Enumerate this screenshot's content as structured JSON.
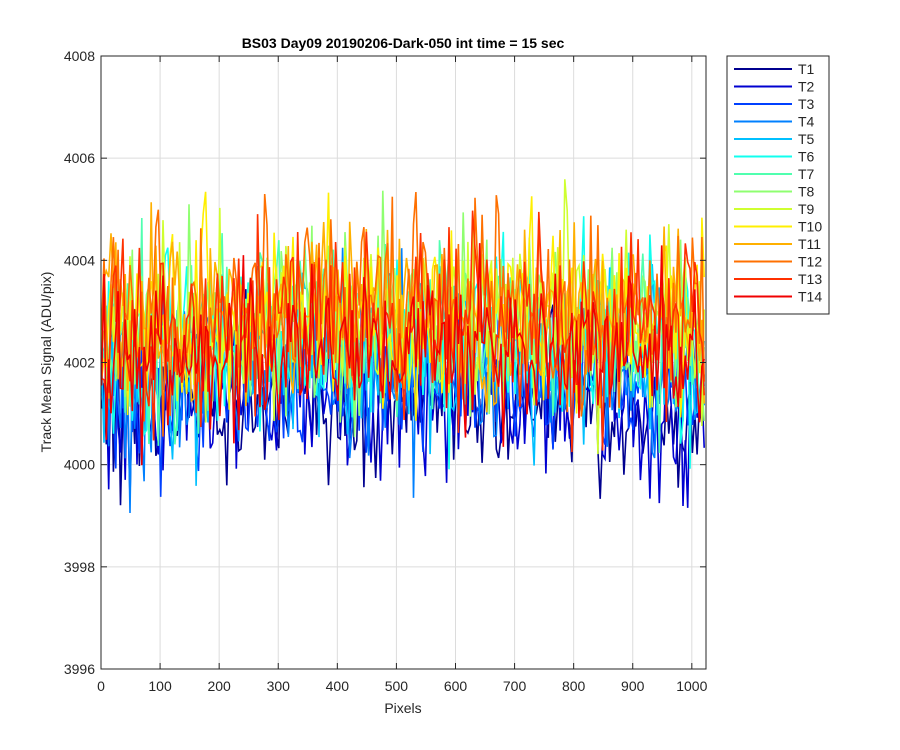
{
  "chart_data": {
    "type": "line",
    "title": "BS03 Day09 20190206-Dark-050 int time = 15 sec",
    "xlabel": "Pixels",
    "ylabel": "Track Mean Signal (ADU/pix)",
    "xlim": [
      0,
      1024
    ],
    "ylim": [
      3996,
      4008
    ],
    "x_ticks": [
      0,
      100,
      200,
      300,
      400,
      500,
      600,
      700,
      800,
      900,
      1000
    ],
    "y_ticks": [
      3996,
      3998,
      4000,
      4002,
      4004,
      4006,
      4008
    ],
    "x_tick_labels": [
      "0",
      "100",
      "200",
      "300",
      "400",
      "500",
      "600",
      "700",
      "800",
      "900",
      "1000"
    ],
    "y_tick_labels": [
      "3996",
      "3998",
      "4000",
      "4002",
      "4004",
      "4006",
      "4008"
    ],
    "grid": true,
    "legend_position": "outside-top-right",
    "x": {
      "start": 1,
      "end": 1024,
      "step": 4
    },
    "series": [
      {
        "name": "T1",
        "color": "#00008F",
        "mean": 4001.3,
        "noise_sd": 0.75,
        "seed": 11
      },
      {
        "name": "T2",
        "color": "#0000D0",
        "mean": 4001.5,
        "noise_sd": 0.75,
        "seed": 12
      },
      {
        "name": "T3",
        "color": "#0040FF",
        "mean": 4001.7,
        "noise_sd": 0.75,
        "seed": 13
      },
      {
        "name": "T4",
        "color": "#0080FF",
        "mean": 4002.0,
        "noise_sd": 0.8,
        "seed": 14
      },
      {
        "name": "T5",
        "color": "#00C0FF",
        "mean": 4002.3,
        "noise_sd": 0.85,
        "seed": 15
      },
      {
        "name": "T6",
        "color": "#10FFEF",
        "mean": 4002.6,
        "noise_sd": 0.85,
        "seed": 16
      },
      {
        "name": "T7",
        "color": "#50FFAF",
        "mean": 4002.7,
        "noise_sd": 0.85,
        "seed": 17
      },
      {
        "name": "T8",
        "color": "#8FFF70",
        "mean": 4002.8,
        "noise_sd": 0.85,
        "seed": 18
      },
      {
        "name": "T9",
        "color": "#CFFF30",
        "mean": 4002.9,
        "noise_sd": 0.85,
        "seed": 19
      },
      {
        "name": "T10",
        "color": "#FFEF00",
        "mean": 4003.0,
        "noise_sd": 0.85,
        "seed": 20
      },
      {
        "name": "T11",
        "color": "#FFB000",
        "mean": 4003.1,
        "noise_sd": 0.9,
        "seed": 21
      },
      {
        "name": "T12",
        "color": "#FF7000",
        "mean": 4003.2,
        "noise_sd": 0.9,
        "seed": 22
      },
      {
        "name": "T13",
        "color": "#FF3000",
        "mean": 4002.9,
        "noise_sd": 0.9,
        "seed": 23
      },
      {
        "name": "T14",
        "color": "#F00000",
        "mean": 4002.3,
        "noise_sd": 0.85,
        "seed": 24
      }
    ]
  }
}
